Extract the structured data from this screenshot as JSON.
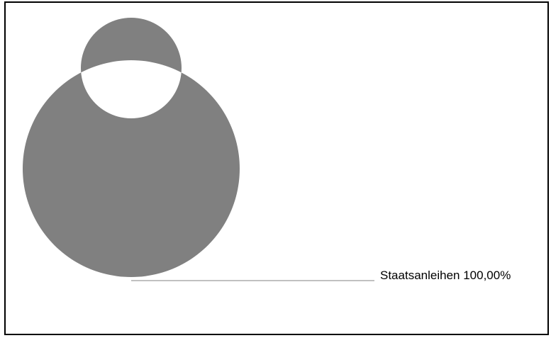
{
  "chart_data": {
    "type": "pie",
    "variant": "donut",
    "title": "",
    "slices": [
      {
        "label": "Staatsanleihen",
        "value": 100.0,
        "value_text": "100,00%",
        "color": "#808080"
      }
    ],
    "label_text": "Staatsanleihen 100,00%",
    "legend": "none",
    "grid": false
  }
}
